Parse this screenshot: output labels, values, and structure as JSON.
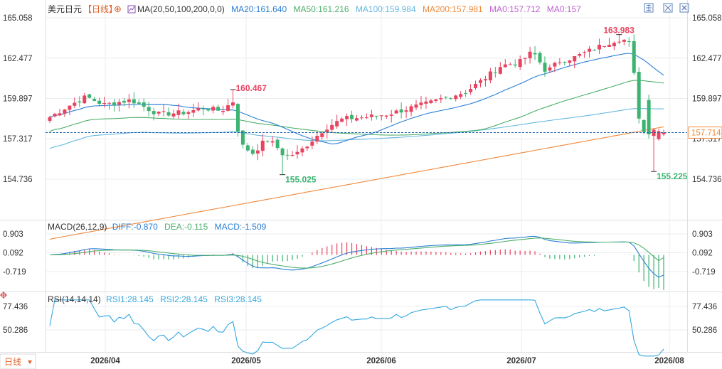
{
  "colors": {
    "up": "#e8435f",
    "down": "#3cb371",
    "ma20": "#2a7fd4",
    "ma50": "#4cae6a",
    "ma100": "#66b8e0",
    "ma200": "#f08a3c",
    "ma0": "#c060d0",
    "rsi": "#33a8e0",
    "grid": "#e9ecef",
    "text": "#333333",
    "accent": "#e0622a"
  },
  "header": {
    "symbol": "美元日元",
    "period_tag": "【日线】",
    "ma_params": "MA(20,50,100,200,0,0)",
    "ma20": "MA20:161.640",
    "ma50": "MA50:161.216",
    "ma100": "MA100:159.984",
    "ma200": "MA200:157.981",
    "ma0a": "MA0:157.712",
    "ma0b": "MA0:157",
    "icons": [
      "plus-square-icon",
      "minus-square-icon",
      "close-square-icon"
    ]
  },
  "macd_header": {
    "name": "MACD(26,12,9)",
    "diff": "DIFF:-0.870",
    "dea": "DEA:-0.115",
    "macd": "MACD:-1.509"
  },
  "rsi_header": {
    "name": "RSI(14,14,14)",
    "rsi1": "RSI1:28.145",
    "rsi2": "RSI2:28.145",
    "rsi3": "RSI3:28.145"
  },
  "footer": {
    "period_button": "日线"
  },
  "chart_data": {
    "type": "candlestick",
    "price_ticks": [
      "165.058",
      "162.477",
      "159.897",
      "157.317",
      "154.736"
    ],
    "price_tick_values": [
      165.058,
      162.477,
      159.897,
      157.317,
      154.736
    ],
    "macd_ticks": [
      "0.903",
      "0.092",
      "-0.719"
    ],
    "macd_tick_values": [
      0.903,
      0.092,
      -0.719
    ],
    "rsi_ticks": [
      "77.436",
      "50.286"
    ],
    "rsi_tick_values": [
      77.436,
      50.286
    ],
    "x_labels": [
      "2026/04",
      "2026/05",
      "2026/06",
      "2026/07",
      "2026/08"
    ],
    "last_price_label": "157.714",
    "last_price": 157.714,
    "annotations": {
      "high1": {
        "text": "160.467",
        "value": 160.467
      },
      "low1": {
        "text": "155.025",
        "value": 155.025
      },
      "high2": {
        "text": "163.983",
        "value": 163.983
      },
      "low2": {
        "text": "155.225",
        "value": 155.225
      }
    },
    "macd_last": {
      "diff": -0.87,
      "dea": -0.115,
      "macd": -1.509
    },
    "rsi_last": 28.145
  }
}
